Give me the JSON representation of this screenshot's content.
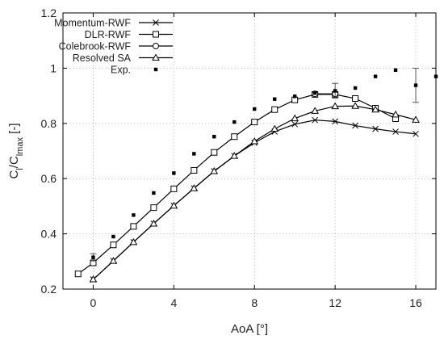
{
  "chart_data": {
    "type": "line",
    "xlabel": "AoA [°]",
    "ylabel_parts": [
      "C",
      "l",
      "/C",
      "lmax",
      " [-]"
    ],
    "xlim": [
      -1.5,
      17
    ],
    "ylim": [
      0.2,
      1.2
    ],
    "xticks": [
      "0",
      "4",
      "8",
      "12",
      "16"
    ],
    "xtick_values": [
      0,
      4,
      8,
      12,
      16
    ],
    "yticks": [
      "0.2",
      "0.4",
      "0.6",
      "0.8",
      "1",
      "1.2"
    ],
    "ytick_values": [
      0.2,
      0.4,
      0.6,
      0.8,
      1.0,
      1.2
    ],
    "grid": true,
    "legend_position": "top-left",
    "series": [
      {
        "name": "Momentum-RWF",
        "marker": "x",
        "x": [
          0,
          1,
          2,
          3,
          4,
          5,
          6,
          7,
          8,
          9,
          10,
          11,
          12,
          13,
          14,
          15,
          16
        ],
        "y": [
          0.235,
          0.302,
          0.37,
          0.437,
          0.502,
          0.565,
          0.627,
          0.682,
          0.73,
          0.77,
          0.797,
          0.812,
          0.807,
          0.792,
          0.78,
          0.77,
          0.762
        ]
      },
      {
        "name": "DLR-RWF",
        "marker": "square",
        "x": [
          -0.75,
          0,
          1,
          2,
          3,
          4,
          5,
          6,
          7,
          8,
          9,
          10,
          11,
          12,
          13,
          14,
          15
        ],
        "y": [
          0.255,
          0.295,
          0.36,
          0.427,
          0.495,
          0.563,
          0.63,
          0.695,
          0.752,
          0.805,
          0.85,
          0.885,
          0.905,
          0.905,
          0.89,
          0.855,
          0.817
        ]
      },
      {
        "name": "Colebrook-RWF",
        "marker": "circle",
        "x": [
          11,
          12
        ],
        "y": [
          0.907,
          0.907
        ]
      },
      {
        "name": "Resolved SA",
        "marker": "triangle",
        "x": [
          0,
          1,
          2,
          3,
          4,
          5,
          6,
          7,
          8,
          9,
          10,
          11,
          12,
          13,
          14,
          15,
          16
        ],
        "y": [
          0.235,
          0.302,
          0.37,
          0.437,
          0.502,
          0.565,
          0.627,
          0.682,
          0.735,
          0.78,
          0.818,
          0.845,
          0.862,
          0.863,
          0.85,
          0.832,
          0.813
        ]
      },
      {
        "name": "Exp.",
        "marker": "dot",
        "x": [
          0,
          1,
          2,
          3,
          4,
          5,
          6,
          7,
          8,
          9,
          10,
          11,
          12,
          13,
          14,
          15,
          16,
          17
        ],
        "y": [
          0.315,
          0.39,
          0.468,
          0.548,
          0.62,
          0.69,
          0.752,
          0.805,
          0.852,
          0.888,
          0.898,
          0.91,
          0.918,
          0.928,
          0.97,
          0.993,
          0.938,
          0.97
        ],
        "err": [
          0.013,
          0,
          0,
          0,
          0,
          0,
          0,
          0,
          0,
          0,
          0,
          0,
          0.027,
          0,
          0,
          0,
          0.062,
          0
        ]
      }
    ]
  }
}
